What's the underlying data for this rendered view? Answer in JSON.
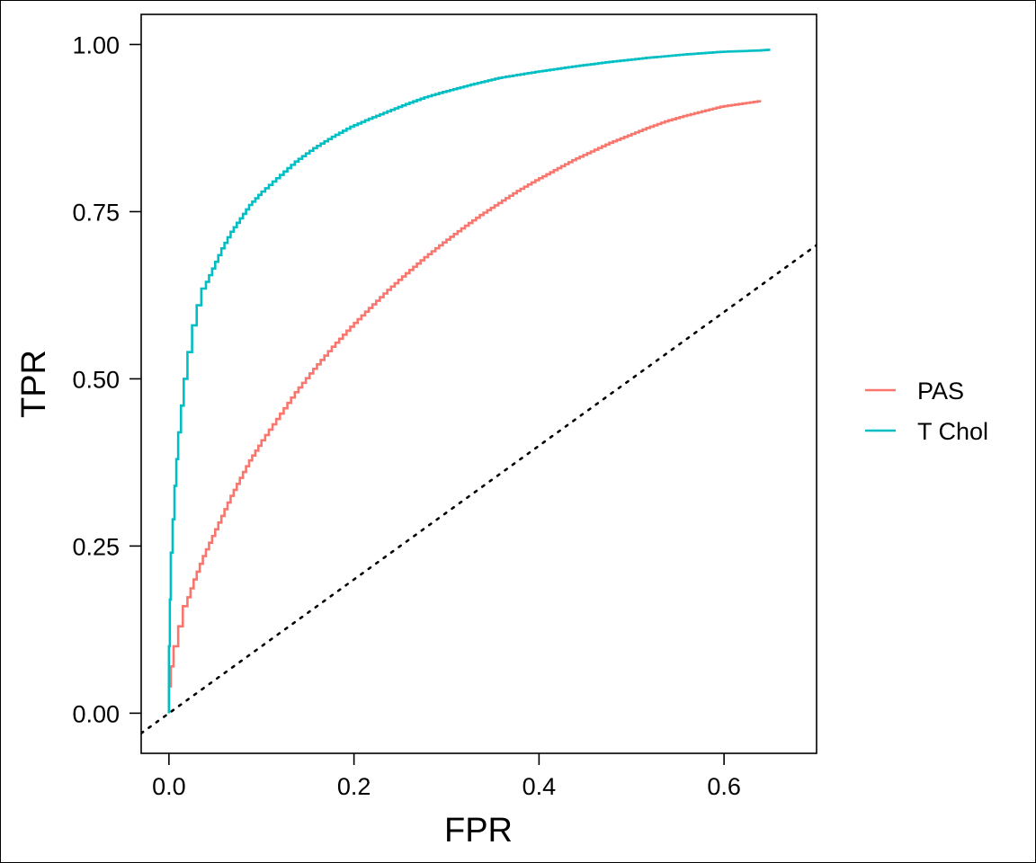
{
  "chart_data": {
    "type": "line",
    "title": "",
    "xlabel": "FPR",
    "ylabel": "TPR",
    "xlim": [
      -0.03,
      0.7
    ],
    "ylim": [
      -0.06,
      1.045
    ],
    "x_ticks": [
      0.0,
      0.2,
      0.4,
      0.6
    ],
    "x_tick_labels": [
      "0.0",
      "0.2",
      "0.4",
      "0.6"
    ],
    "y_ticks": [
      0.0,
      0.25,
      0.5,
      0.75,
      1.0
    ],
    "y_tick_labels": [
      "0.00",
      "0.25",
      "0.50",
      "0.75",
      "1.00"
    ],
    "grid": false,
    "legend_position": "right",
    "reference_line": {
      "style": "dotted",
      "slope": 1,
      "intercept": 0,
      "color": "#000000"
    },
    "series": [
      {
        "name": "PAS",
        "color": "#F8766D",
        "step": true,
        "x": [
          0,
          0.002,
          0.005,
          0.01,
          0.015,
          0.02,
          0.03,
          0.04,
          0.05,
          0.06,
          0.07,
          0.08,
          0.09,
          0.1,
          0.12,
          0.14,
          0.16,
          0.18,
          0.2,
          0.22,
          0.24,
          0.26,
          0.28,
          0.3,
          0.32,
          0.34,
          0.36,
          0.38,
          0.4,
          0.42,
          0.44,
          0.46,
          0.48,
          0.5,
          0.52,
          0.54,
          0.56,
          0.58,
          0.6,
          0.62,
          0.64
        ],
        "y": [
          0,
          0.04,
          0.07,
          0.1,
          0.13,
          0.16,
          0.2,
          0.235,
          0.265,
          0.295,
          0.325,
          0.352,
          0.378,
          0.4,
          0.44,
          0.48,
          0.515,
          0.548,
          0.578,
          0.606,
          0.633,
          0.658,
          0.682,
          0.704,
          0.725,
          0.745,
          0.763,
          0.781,
          0.797,
          0.812,
          0.827,
          0.84,
          0.853,
          0.864,
          0.875,
          0.885,
          0.893,
          0.9,
          0.907,
          0.911,
          0.915
        ]
      },
      {
        "name": "T Chol",
        "color": "#00BFC4",
        "step": true,
        "x": [
          0,
          0.001,
          0.002,
          0.004,
          0.006,
          0.008,
          0.01,
          0.013,
          0.016,
          0.02,
          0.025,
          0.03,
          0.035,
          0.04,
          0.05,
          0.06,
          0.07,
          0.08,
          0.09,
          0.1,
          0.12,
          0.14,
          0.16,
          0.18,
          0.2,
          0.22,
          0.24,
          0.26,
          0.28,
          0.3,
          0.33,
          0.36,
          0.4,
          0.44,
          0.48,
          0.52,
          0.56,
          0.6,
          0.64,
          0.65
        ],
        "y": [
          0,
          0.1,
          0.17,
          0.24,
          0.29,
          0.34,
          0.38,
          0.42,
          0.46,
          0.5,
          0.54,
          0.58,
          0.61,
          0.635,
          0.665,
          0.695,
          0.72,
          0.74,
          0.76,
          0.775,
          0.8,
          0.825,
          0.845,
          0.862,
          0.877,
          0.889,
          0.9,
          0.911,
          0.921,
          0.929,
          0.94,
          0.95,
          0.959,
          0.967,
          0.974,
          0.98,
          0.985,
          0.989,
          0.991,
          0.992
        ]
      }
    ]
  }
}
